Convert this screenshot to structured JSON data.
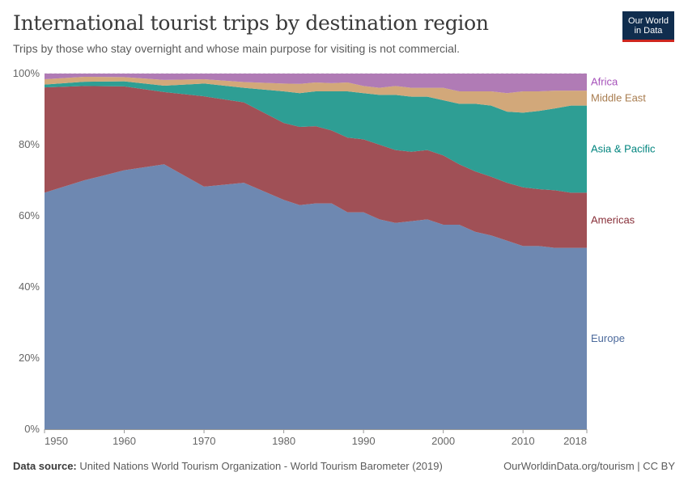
{
  "header": {
    "title": "International tourist trips by destination region",
    "subtitle": "Trips by those who stay overnight and whose main purpose for visiting is not commercial.",
    "logo_line1": "Our World",
    "logo_line2": "in Data"
  },
  "footer": {
    "source_label": "Data source:",
    "source_text": "United Nations World Tourism Organization - World Tourism Barometer (2019)",
    "credit": "OurWorldinData.org/tourism | CC BY"
  },
  "colors": {
    "Europe": "#6e88b1",
    "Americas": "#a05056",
    "Asia & Pacific": "#2e9e94",
    "Middle East": "#d2a87a",
    "Africa": "#b07bb5",
    "Europe_label": "#4c6a9c",
    "Americas_label": "#883039",
    "Asia & Pacific_label": "#00847e",
    "Middle East_label": "#a87c4f",
    "Africa_label": "#a652ba"
  },
  "chart_data": {
    "type": "area",
    "stacked": true,
    "x": [
      1950,
      1955,
      1960,
      1965,
      1970,
      1975,
      1980,
      1982,
      1984,
      1986,
      1988,
      1990,
      1992,
      1994,
      1996,
      1998,
      2000,
      2002,
      2004,
      2006,
      2008,
      2010,
      2012,
      2014,
      2016,
      2018
    ],
    "series": [
      {
        "name": "Europe",
        "values": [
          66.5,
          70.0,
          72.8,
          74.5,
          68.2,
          69.3,
          64.5,
          63.0,
          63.5,
          63.5,
          61.0,
          61.0,
          59.0,
          58.0,
          58.5,
          59.0,
          57.5,
          57.5,
          55.5,
          54.5,
          53.0,
          51.5,
          51.5,
          51.0,
          51.0,
          51.0
        ]
      },
      {
        "name": "Americas",
        "values": [
          29.6,
          26.5,
          23.6,
          20.3,
          25.4,
          22.6,
          21.6,
          22.0,
          21.7,
          20.5,
          21.0,
          20.5,
          21.0,
          20.5,
          19.5,
          19.5,
          19.5,
          17.0,
          17.0,
          16.5,
          16.3,
          16.5,
          16.0,
          16.2,
          15.5,
          15.5
        ]
      },
      {
        "name": "Asia & Pacific",
        "values": [
          0.8,
          1.2,
          1.4,
          1.8,
          3.6,
          4.1,
          8.9,
          9.5,
          9.8,
          11.0,
          13.0,
          13.0,
          14.0,
          15.5,
          15.5,
          15.0,
          15.5,
          17.0,
          19.0,
          20.0,
          20.0,
          21.0,
          22.0,
          23.0,
          24.5,
          24.5
        ]
      },
      {
        "name": "Middle East",
        "values": [
          1.5,
          1.4,
          1.2,
          1.6,
          1.2,
          1.6,
          2.2,
          2.6,
          2.5,
          2.3,
          2.5,
          2.0,
          2.0,
          2.5,
          2.5,
          2.5,
          3.5,
          3.5,
          3.5,
          4.0,
          5.2,
          6.0,
          5.5,
          5.0,
          4.2,
          4.2
        ]
      },
      {
        "name": "Africa",
        "values": [
          1.6,
          0.9,
          1.0,
          1.8,
          1.6,
          2.4,
          2.8,
          2.9,
          2.5,
          2.7,
          2.5,
          3.5,
          4.0,
          3.5,
          4.0,
          4.0,
          4.0,
          5.0,
          5.0,
          5.0,
          5.5,
          5.0,
          5.0,
          4.8,
          4.8,
          4.8
        ]
      }
    ],
    "y_ticks": [
      "0%",
      "20%",
      "40%",
      "60%",
      "80%",
      "100%"
    ],
    "x_ticks": [
      1950,
      1960,
      1970,
      1980,
      1990,
      2000,
      2010,
      2018
    ],
    "xlim": [
      1950,
      2018
    ],
    "ylim": [
      0,
      100
    ],
    "grid": "horizontal-dashed",
    "legend": "right"
  }
}
